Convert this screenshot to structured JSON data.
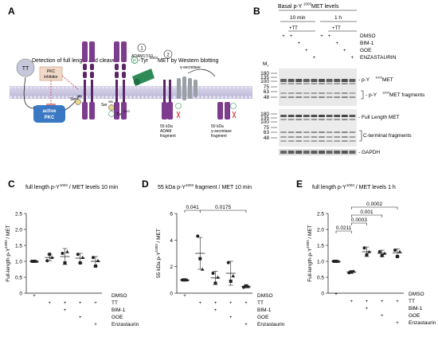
{
  "panels": {
    "A": {
      "letter": "A",
      "title": "Detection of full length and cleaved",
      "title_p": "P",
      "title_tail": "-Tyr",
      "title_sup": "1003",
      "title_end": "MET by Western blotting",
      "tt": "TT",
      "pkc_inhibitor": [
        "PKC",
        "inhibitor"
      ],
      "active_pkc": [
        "active",
        "PKC"
      ],
      "ser": "Ser",
      "ser_sup": "985",
      "tyr": "Tyr",
      "tyr_sup": "1003",
      "step1": "1",
      "step2": "2",
      "adam": "ADAM17/10",
      "gsec": "γ-secretase",
      "frag55": [
        "55 kDa",
        "ADAM",
        "fragment"
      ],
      "frag50": [
        "50 kDa",
        "γ-secretase",
        "fragment"
      ]
    },
    "B": {
      "letter": "B",
      "title": "Basal p-Y",
      "title_sup": "1003",
      "title_tail": " MET levels",
      "time1": "10 min",
      "time2": "1 h",
      "tt1": "+TT",
      "tt2": "+TT",
      "rows": [
        {
          "label": "DMSO",
          "signs": [
            "+",
            "+",
            "",
            "",
            "",
            "+",
            "+",
            "",
            "",
            ""
          ]
        },
        {
          "label": "BIM-1",
          "signs": [
            "",
            "",
            "+",
            "",
            "",
            "",
            "",
            "+",
            "",
            ""
          ]
        },
        {
          "label": "GOE",
          "signs": [
            "",
            "",
            "",
            "+",
            "",
            "",
            "",
            "",
            "+",
            ""
          ]
        },
        {
          "label": "ENZASTAURIN",
          "signs": [
            "",
            "",
            "",
            "",
            "+",
            "",
            "",
            "",
            "",
            "+"
          ]
        }
      ],
      "mr": "M",
      "mr_sub": "r",
      "markers1": [
        "180",
        "135",
        "100",
        "75",
        "63",
        "48"
      ],
      "markers2": [
        "180",
        "135",
        "100",
        "75",
        "63",
        "48"
      ],
      "labels": {
        "py": "- p-Y",
        "py_sup": "1003",
        "py_tail": " MET",
        "pyf": "- p-Y",
        "pyf_sup": "1003",
        "pyf_tail": " MET fragments",
        "full": "- Full Length MET",
        "cterm": "C-terminal fragments",
        "gapdh": "- GAPDH"
      }
    }
  },
  "chart_data": [
    {
      "panel": "C",
      "type": "scatter",
      "title": "full length p-Y1003 / MET levels 10 min",
      "ylabel": "Full-length p-Y1003 / MET",
      "ylim": [
        0,
        2.5
      ],
      "yticks": [
        "0",
        "0.5",
        "1.0",
        "1.5",
        "2.0",
        "2.5"
      ],
      "groups": [
        {
          "mean": 1.0,
          "sd": 0.02,
          "points": [
            1.0,
            1.0,
            1.0
          ]
        },
        {
          "mean": 1.12,
          "sd": 0.1,
          "points": [
            1.02,
            1.22,
            1.12
          ]
        },
        {
          "mean": 1.15,
          "sd": 0.25,
          "points": [
            1.25,
            0.95,
            1.3
          ]
        },
        {
          "mean": 1.1,
          "sd": 0.15,
          "points": [
            1.22,
            0.95,
            1.12
          ]
        },
        {
          "mean": 1.0,
          "sd": 0.15,
          "points": [
            1.12,
            0.85,
            1.02
          ]
        }
      ],
      "conditions": [
        {
          "label": "DMSO",
          "signs": [
            "+",
            "",
            "",
            "",
            ""
          ]
        },
        {
          "label": "TT",
          "signs": [
            "",
            "+",
            "+",
            "+",
            "+"
          ]
        },
        {
          "label": "BIM-1",
          "signs": [
            "",
            "",
            "+",
            "",
            ""
          ]
        },
        {
          "label": "GOE",
          "signs": [
            "",
            "",
            "",
            "+",
            ""
          ]
        },
        {
          "label": "Enzastaurin",
          "signs": [
            "",
            "",
            "",
            "",
            "+"
          ]
        }
      ]
    },
    {
      "panel": "D",
      "type": "scatter",
      "title": "55 kDa p-Y1003 fragment / MET  10 min",
      "ylabel": "55 kDa p-Y1003 / MET",
      "ylim": [
        0,
        6
      ],
      "yticks": [
        "0",
        "2",
        "4",
        "6"
      ],
      "groups": [
        {
          "mean": 1.0,
          "sd": 0.05,
          "points": [
            1.0,
            1.0,
            1.0
          ]
        },
        {
          "mean": 3.0,
          "sd": 1.2,
          "points": [
            4.3,
            2.6,
            1.8
          ]
        },
        {
          "mean": 1.15,
          "sd": 0.5,
          "points": [
            1.5,
            0.75,
            1.2
          ]
        },
        {
          "mean": 1.5,
          "sd": 0.9,
          "points": [
            2.3,
            0.9,
            1.3
          ]
        },
        {
          "mean": 0.5,
          "sd": 0.1,
          "points": [
            0.45,
            0.55,
            0.5
          ]
        }
      ],
      "brackets": [
        {
          "from": 0,
          "to": 1,
          "label": "0.041"
        },
        {
          "from": 1,
          "to": 4,
          "label": "0.0175"
        }
      ],
      "conditions": [
        {
          "label": "DMSO",
          "signs": [
            "+",
            "",
            "",
            "",
            ""
          ]
        },
        {
          "label": "TT",
          "signs": [
            "",
            "+",
            "+",
            "+",
            "+"
          ]
        },
        {
          "label": "BIM-1",
          "signs": [
            "",
            "",
            "+",
            "",
            ""
          ]
        },
        {
          "label": "GOE",
          "signs": [
            "",
            "",
            "",
            "+",
            ""
          ]
        },
        {
          "label": "Enzastaurin",
          "signs": [
            "",
            "",
            "",
            "",
            "+"
          ]
        }
      ]
    },
    {
      "panel": "E",
      "type": "scatter",
      "title": "full length p-Y1003 / MET levels 1 h",
      "ylabel": "Full-length p-Y1003 / MET",
      "ylim": [
        0,
        2.5
      ],
      "yticks": [
        "0",
        "0.5",
        "1.0",
        "1.5",
        "2.0",
        "2.5"
      ],
      "groups": [
        {
          "mean": 1.0,
          "sd": 0.02,
          "points": [
            1.0,
            1.0,
            1.0
          ]
        },
        {
          "mean": 0.66,
          "sd": 0.04,
          "points": [
            0.64,
            0.67,
            0.69
          ]
        },
        {
          "mean": 1.3,
          "sd": 0.15,
          "points": [
            1.42,
            1.2,
            1.3
          ]
        },
        {
          "mean": 1.25,
          "sd": 0.1,
          "points": [
            1.3,
            1.18,
            1.25
          ]
        },
        {
          "mean": 1.27,
          "sd": 0.12,
          "points": [
            1.35,
            1.15,
            1.3
          ]
        }
      ],
      "brackets": [
        {
          "from": 0,
          "to": 1,
          "label": "0.0211"
        },
        {
          "from": 1,
          "to": 2,
          "label": "0.0003"
        },
        {
          "from": 1,
          "to": 3,
          "label": "0.001"
        },
        {
          "from": 1,
          "to": 4,
          "label": "0.0002"
        }
      ],
      "conditions": [
        {
          "label": "DMSO",
          "signs": [
            "+",
            "",
            "",
            "",
            ""
          ]
        },
        {
          "label": "TT",
          "signs": [
            "",
            "+",
            "+",
            "+",
            "+"
          ]
        },
        {
          "label": "BIM-1",
          "signs": [
            "",
            "",
            "+",
            "",
            ""
          ]
        },
        {
          "label": "GOE",
          "signs": [
            "",
            "",
            "",
            "+",
            ""
          ]
        },
        {
          "label": "Enzastaurin",
          "signs": [
            "",
            "",
            "",
            "",
            "+"
          ]
        }
      ]
    }
  ],
  "chart_letters": [
    "C",
    "D",
    "E"
  ],
  "colors": {
    "membrane_top": "#dcd8ec",
    "membrane_bottom": "#b9b4d6",
    "receptor": "#7d3c8e",
    "receptor_dark": "#5a2667",
    "pkc": "#3a78c4",
    "pkc_box": "#f1d9c8",
    "tt_circle": "#c8c8dc",
    "adam": "#2e8b57",
    "gsec": "#9aa0a6",
    "phospho": "#e6d98a",
    "red": "#d04040",
    "blot_bg": "#e9e9e9"
  }
}
